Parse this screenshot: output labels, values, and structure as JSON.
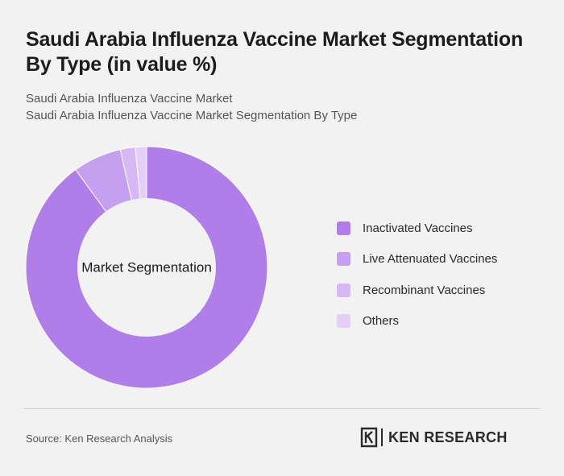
{
  "header": {
    "title": "Saudi Arabia Influenza Vaccine Market Segmentation By Type (in value %)",
    "subtitle_1": "Saudi Arabia Influenza Vaccine Market",
    "subtitle_2": "Saudi Arabia Influenza Vaccine Market Segmentation By Type"
  },
  "chart_data": {
    "type": "pie",
    "donut": true,
    "center_label": "Market Segmentation",
    "categories": [
      "Inactivated Vaccines",
      "Live Attenuated Vaccines",
      "Recombinant Vaccines",
      "Others"
    ],
    "values": [
      90,
      6.5,
      2,
      1.5
    ],
    "colors": [
      "#b07ee8",
      "#c59ff0",
      "#d5b8f5",
      "#e3d0f8"
    ],
    "legend_position": "right"
  },
  "footer": {
    "source": "Source: Ken Research Analysis",
    "logo_text": "KEN RESEARCH"
  },
  "colors": {
    "background": "#f2f2f2",
    "hole": "#f2f2f2"
  }
}
